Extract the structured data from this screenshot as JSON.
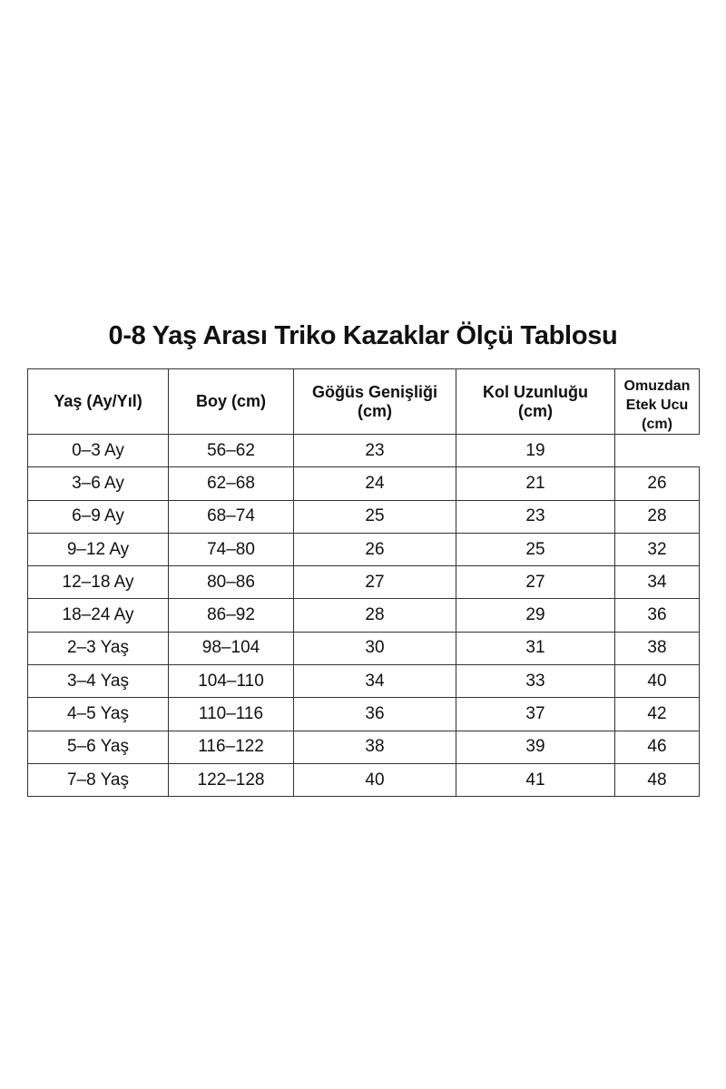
{
  "title": "0-8 Yaş Arası Triko Kazaklar Ölçü Tablosu",
  "columns": [
    "Yaş (Ay/Yıl)",
    "Boy (cm)",
    "Göğüs Genişliği (cm)",
    "Kol Uzunluğu (cm)",
    "Omuzdan Etek Ucu (cm)"
  ],
  "rows": [
    [
      "0–3 Ay",
      "56–62",
      "23",
      "19",
      ""
    ],
    [
      "3–6 Ay",
      "62–68",
      "24",
      "21",
      "26"
    ],
    [
      "6–9 Ay",
      "68–74",
      "25",
      "23",
      "28"
    ],
    [
      "9–12 Ay",
      "74–80",
      "26",
      "25",
      "32"
    ],
    [
      "12–18 Ay",
      "80–86",
      "27",
      "27",
      "34"
    ],
    [
      "18–24 Ay",
      "86–92",
      "28",
      "29",
      "36"
    ],
    [
      "2–3 Yaş",
      "98–104",
      "30",
      "31",
      "38"
    ],
    [
      "3–4 Yaş",
      "104–110",
      "34",
      "33",
      "40"
    ],
    [
      "4–5 Yaş",
      "110–116",
      "36",
      "37",
      "42"
    ],
    [
      "5–6 Yaş",
      "116–122",
      "38",
      "39",
      "46"
    ],
    [
      "7–8 Yaş",
      "122–128",
      "40",
      "41",
      "48"
    ]
  ]
}
